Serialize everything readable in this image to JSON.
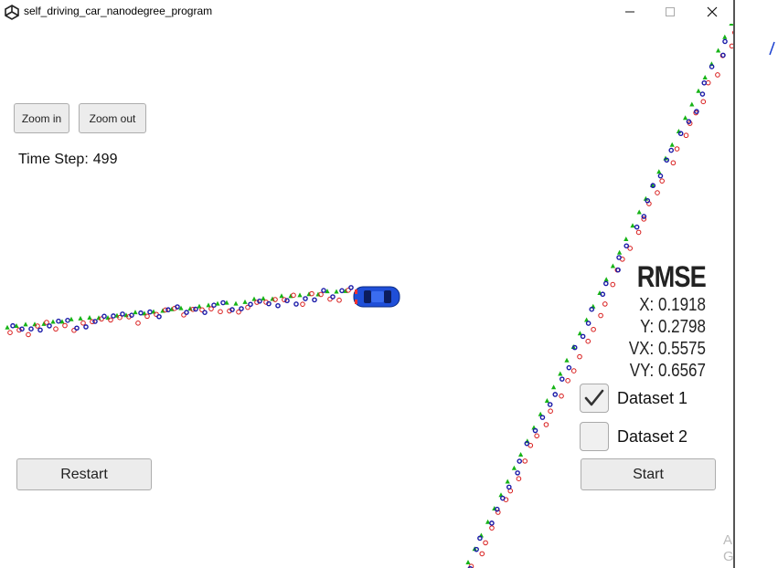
{
  "window": {
    "title": "self_driving_car_nanodegree_program",
    "icon": "unity-icon",
    "controls": [
      "minimize-icon",
      "maximize-icon",
      "close-icon"
    ]
  },
  "toolbar": {
    "zoom_in_label": "Zoom in",
    "zoom_out_label": "Zoom out"
  },
  "status": {
    "time_step_label": "Time Step:",
    "time_step_value": "499"
  },
  "rmse": {
    "title": "RMSE",
    "x": "X: 0.1918",
    "y": "Y: 0.2798",
    "vx": "VX: 0.5575",
    "vy": "VY: 0.6567"
  },
  "datasets": [
    {
      "label": "Dataset 1",
      "checked": true
    },
    {
      "label": "Dataset 2",
      "checked": false
    }
  ],
  "buttons": {
    "restart_label": "Restart",
    "start_label": "Start"
  },
  "colors": {
    "radar_marker": "#1a1aa8",
    "lidar_marker": "#d81b1b",
    "estimate_marker": "#16b316",
    "car": "#1f4fd8"
  },
  "corner_text": {
    "line1": "A",
    "line2": "G"
  }
}
